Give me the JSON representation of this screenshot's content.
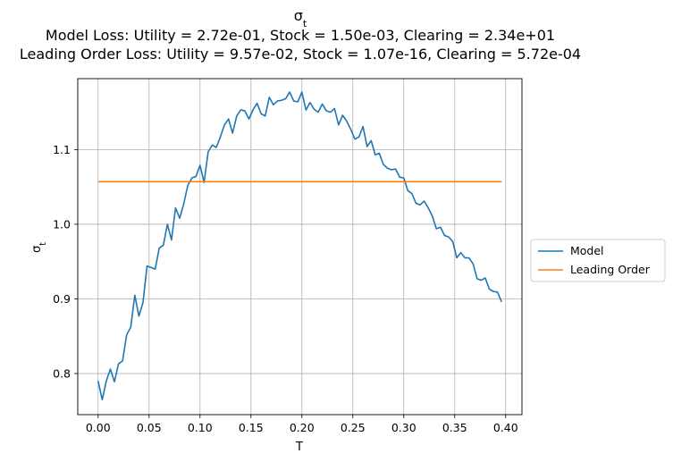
{
  "chart_data": {
    "type": "line",
    "title": "σ",
    "title_subscript": "t",
    "subtitle_lines": [
      "Model Loss: Utility = 2.72e-01, Stock = 1.50e-03, Clearing = 2.34e+01",
      "Leading Order Loss: Utility = 9.57e-02, Stock = 1.07e-16, Clearing = 5.72e-04"
    ],
    "xlabel": "T",
    "ylabel": "σ",
    "ylabel_subscript": "t",
    "xlim": [
      -0.02,
      0.416
    ],
    "ylim": [
      0.745,
      1.195
    ],
    "xticks": [
      0.0,
      0.05,
      0.1,
      0.15,
      0.2,
      0.25,
      0.3,
      0.35,
      0.4
    ],
    "xtick_labels": [
      "0.00",
      "0.05",
      "0.10",
      "0.15",
      "0.20",
      "0.25",
      "0.30",
      "0.35",
      "0.40"
    ],
    "yticks": [
      0.8,
      0.9,
      1.0,
      1.1
    ],
    "ytick_labels": [
      "0.8",
      "0.9",
      "1.0",
      "1.1"
    ],
    "grid": true,
    "legend_position": "center-right-outside",
    "colors": {
      "model": "#1f77b4",
      "leading": "#ff7f0e"
    },
    "series": [
      {
        "name": "Model",
        "color": "#1f77b4",
        "x": [
          0.0,
          0.004,
          0.008,
          0.012,
          0.016,
          0.02,
          0.024,
          0.028,
          0.032,
          0.036,
          0.04,
          0.044,
          0.048,
          0.052,
          0.056,
          0.06,
          0.064,
          0.068,
          0.072,
          0.076,
          0.08,
          0.084,
          0.088,
          0.092,
          0.096,
          0.1,
          0.104,
          0.108,
          0.112,
          0.116,
          0.12,
          0.124,
          0.128,
          0.132,
          0.136,
          0.14,
          0.144,
          0.148,
          0.152,
          0.156,
          0.16,
          0.164,
          0.168,
          0.172,
          0.176,
          0.18,
          0.184,
          0.188,
          0.192,
          0.196,
          0.2,
          0.204,
          0.208,
          0.212,
          0.216,
          0.22,
          0.224,
          0.228,
          0.232,
          0.236,
          0.24,
          0.244,
          0.248,
          0.252,
          0.256,
          0.26,
          0.264,
          0.268,
          0.272,
          0.276,
          0.28,
          0.284,
          0.288,
          0.292,
          0.296,
          0.3,
          0.304,
          0.308,
          0.312,
          0.316,
          0.32,
          0.324,
          0.328,
          0.332,
          0.336,
          0.34,
          0.344,
          0.348,
          0.352,
          0.356,
          0.36,
          0.364,
          0.368,
          0.372,
          0.376,
          0.38,
          0.384,
          0.388,
          0.392,
          0.396
        ],
        "values": [
          0.79,
          0.765,
          0.79,
          0.806,
          0.789,
          0.813,
          0.817,
          0.852,
          0.862,
          0.905,
          0.877,
          0.895,
          0.944,
          0.942,
          0.94,
          0.968,
          0.972,
          1.0,
          0.979,
          1.022,
          1.008,
          1.027,
          1.052,
          1.062,
          1.064,
          1.079,
          1.056,
          1.097,
          1.106,
          1.103,
          1.117,
          1.133,
          1.141,
          1.122,
          1.145,
          1.153,
          1.152,
          1.141,
          1.153,
          1.162,
          1.148,
          1.145,
          1.17,
          1.16,
          1.165,
          1.166,
          1.168,
          1.177,
          1.165,
          1.164,
          1.177,
          1.153,
          1.163,
          1.154,
          1.15,
          1.161,
          1.152,
          1.15,
          1.155,
          1.133,
          1.146,
          1.138,
          1.127,
          1.114,
          1.117,
          1.131,
          1.104,
          1.112,
          1.093,
          1.095,
          1.08,
          1.075,
          1.073,
          1.074,
          1.063,
          1.062,
          1.045,
          1.041,
          1.028,
          1.026,
          1.031,
          1.022,
          1.011,
          0.994,
          0.996,
          0.985,
          0.983,
          0.977,
          0.955,
          0.962,
          0.955,
          0.955,
          0.947,
          0.927,
          0.925,
          0.928,
          0.913,
          0.91,
          0.909,
          0.896
        ]
      },
      {
        "name": "Leading Order",
        "color": "#ff7f0e",
        "x": [
          0.0,
          0.396
        ],
        "values": [
          1.057,
          1.057
        ]
      }
    ]
  }
}
